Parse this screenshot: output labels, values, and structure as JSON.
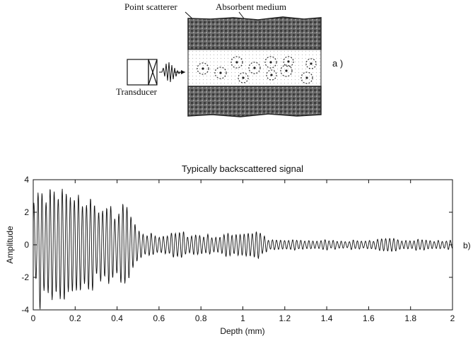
{
  "diagram": {
    "label_point_scatterer": "Point scatterer",
    "label_absorbent_medium": "Absorbent medium",
    "label_transducer": "Transducer",
    "panel_a_label": "a )"
  },
  "plot": {
    "title": "Typically backscattered signal",
    "xlabel": "Depth (mm)",
    "ylabel": "Amplitude",
    "panel_b_label": "b)"
  },
  "chart_data": {
    "type": "line",
    "title": "Typically backscattered signal",
    "xlabel": "Depth (mm)",
    "ylabel": "Amplitude",
    "xlim": [
      0,
      2
    ],
    "ylim": [
      -4,
      4
    ],
    "xticks": [
      0,
      0.2,
      0.4,
      0.6,
      0.8,
      1,
      1.2,
      1.4,
      1.6,
      1.8,
      2
    ],
    "yticks": [
      -4,
      -2,
      0,
      2,
      4
    ],
    "envelope": [
      {
        "x": 0.0,
        "amp": 3.2
      },
      {
        "x": 0.03,
        "amp": 4.5
      },
      {
        "x": 0.12,
        "amp": 4.3
      },
      {
        "x": 0.2,
        "amp": 3.4
      },
      {
        "x": 0.25,
        "amp": 3.8
      },
      {
        "x": 0.35,
        "amp": 2.6
      },
      {
        "x": 0.45,
        "amp": 2.8
      },
      {
        "x": 0.5,
        "amp": 0.9
      },
      {
        "x": 0.6,
        "amp": 0.8
      },
      {
        "x": 0.7,
        "amp": 0.9
      },
      {
        "x": 0.8,
        "amp": 0.8
      },
      {
        "x": 0.9,
        "amp": 0.7
      },
      {
        "x": 0.97,
        "amp": 1.0
      },
      {
        "x": 1.08,
        "amp": 1.1
      },
      {
        "x": 1.12,
        "amp": 0.35
      },
      {
        "x": 1.4,
        "amp": 0.35
      },
      {
        "x": 1.6,
        "amp": 0.35
      },
      {
        "x": 1.83,
        "amp": 0.5
      },
      {
        "x": 1.9,
        "amp": 0.3
      },
      {
        "x": 2.0,
        "amp": 0.35
      }
    ],
    "grid": false
  }
}
